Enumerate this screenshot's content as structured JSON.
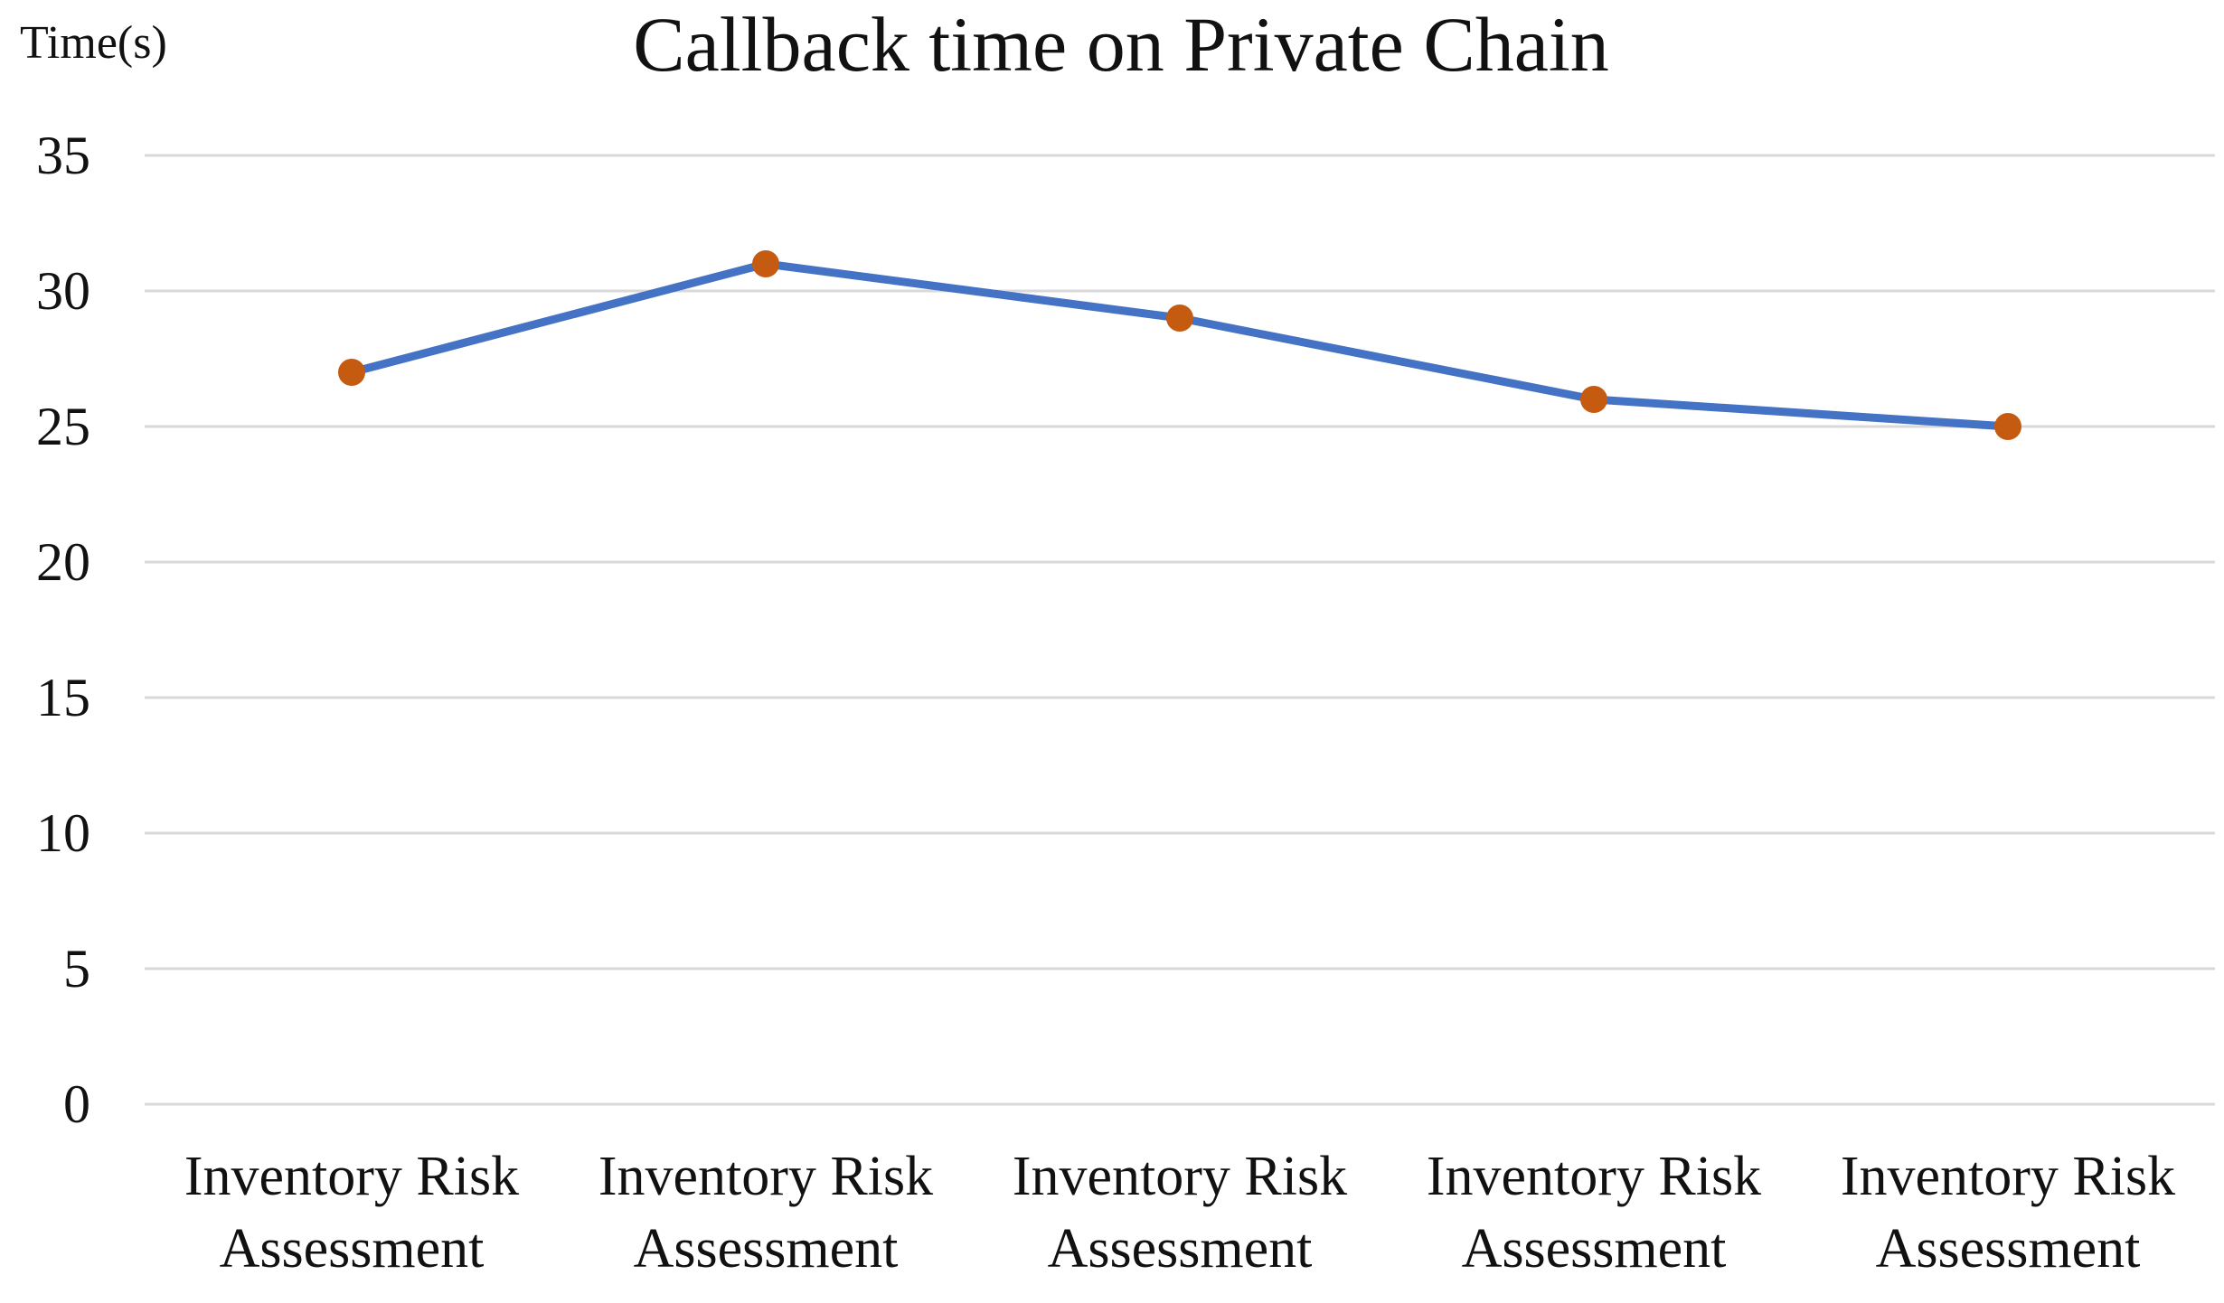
{
  "chart_data": {
    "type": "line",
    "title": "Callback time on Private Chain",
    "ylabel": "Time(s)",
    "xlabel": "",
    "categories": [
      "Inventory Risk Assessment",
      "Inventory Risk Assessment",
      "Inventory Risk Assessment",
      "Inventory Risk Assessment",
      "Inventory Risk Assessment"
    ],
    "category_lines": [
      [
        "Inventory Risk",
        "Assessment"
      ],
      [
        "Inventory Risk",
        "Assessment"
      ],
      [
        "Inventory Risk",
        "Assessment"
      ],
      [
        "Inventory Risk",
        "Assessment"
      ],
      [
        "Inventory Risk",
        "Assessment"
      ]
    ],
    "series": [
      {
        "values": [
          27,
          31,
          29,
          26,
          25
        ]
      }
    ],
    "ylim": [
      0,
      35
    ],
    "yticks": [
      "0",
      "5",
      "10",
      "15",
      "20",
      "25",
      "30",
      "35"
    ],
    "grid": true,
    "legend": "none",
    "colors": {
      "line": "#4472C4",
      "marker": "#C55A11",
      "grid": "#D9D9D9"
    }
  }
}
